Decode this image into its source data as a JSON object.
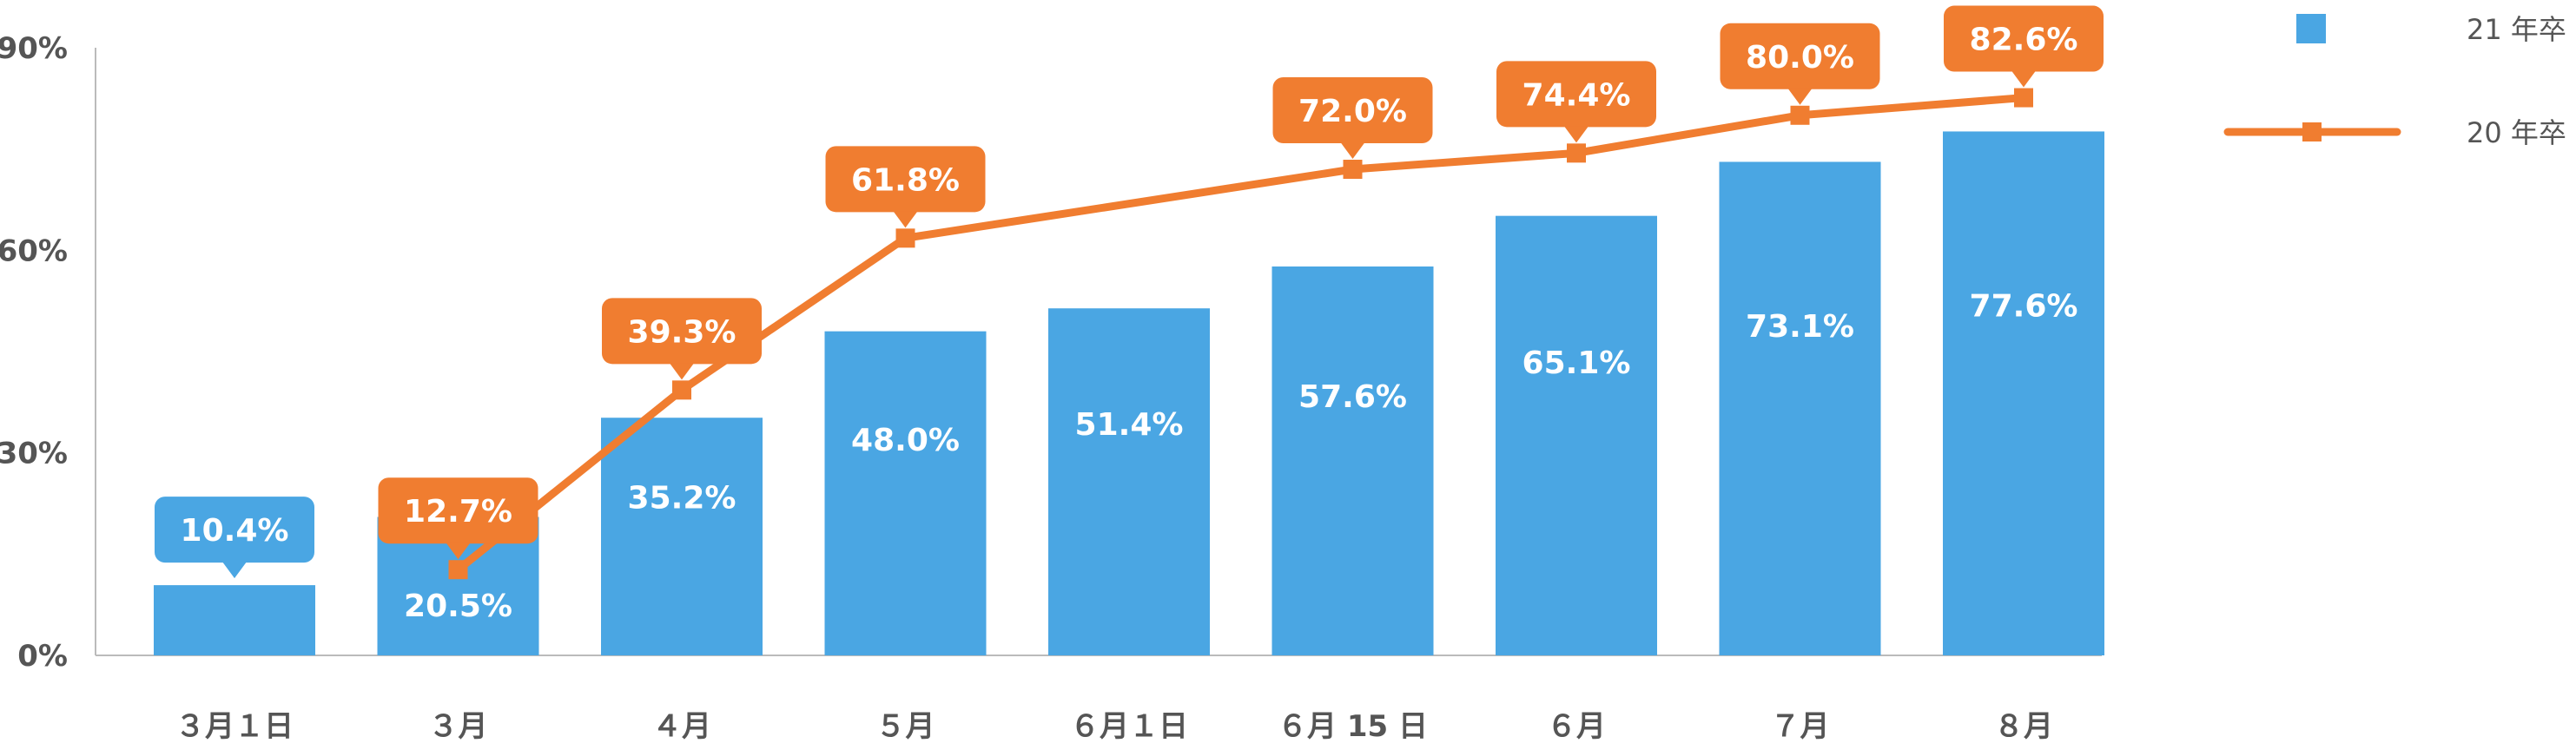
{
  "chart_data": {
    "type": "bar",
    "categories": [
      "３月１日",
      "３月",
      "４月",
      "５月",
      "６月１日",
      "６月 15 日",
      "６月",
      "７月",
      "８月"
    ],
    "series": [
      {
        "name": "21 年卒",
        "type": "bar",
        "values": [
          10.4,
          20.5,
          35.2,
          48.0,
          51.4,
          57.6,
          65.1,
          73.1,
          77.6
        ],
        "labels": [
          "10.4%",
          "20.5%",
          "35.2%",
          "48.0%",
          "51.4%",
          "57.6%",
          "65.1%",
          "73.1%",
          "77.6%"
        ],
        "color": "#4aa6e3"
      },
      {
        "name": "20 年卒",
        "type": "line",
        "values": [
          null,
          12.7,
          39.3,
          61.8,
          null,
          72.0,
          74.4,
          80.0,
          82.6
        ],
        "labels": [
          "",
          "12.7%",
          "39.3%",
          "61.8%",
          "",
          "72.0%",
          "74.4%",
          "80.0%",
          "82.6%"
        ],
        "color": "#f07d30"
      }
    ],
    "ylim": [
      0,
      90
    ],
    "yticks": [
      "0%",
      "30%",
      "60%",
      "90%"
    ],
    "legend_position": "top-right",
    "title": "",
    "xlabel": "",
    "ylabel": ""
  }
}
